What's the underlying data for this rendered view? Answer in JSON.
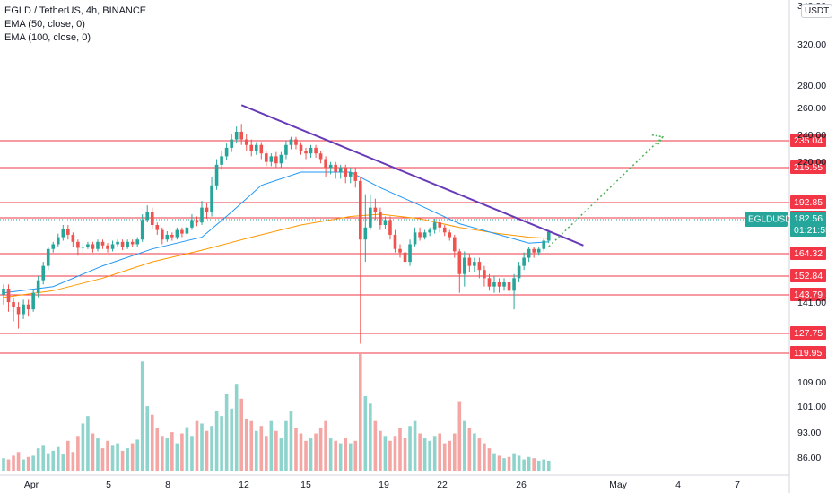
{
  "legend": {
    "title": "EGLD / TetherUS, 4h, BINANCE",
    "ema50": "EMA (50, close, 0)",
    "ema100": "EMA (100, close, 0)"
  },
  "currency": "USDT",
  "colors": {
    "up": "#26a69a",
    "down": "#ef5350",
    "level": "#f23645",
    "ema50": "#2196f3",
    "ema100": "#ff9800",
    "trendline": "#673ab7",
    "projection": "#4caf50",
    "current": "#26a69a"
  },
  "chart_data": {
    "type": "candlestick",
    "symbol": "EGLDUSDT",
    "timeframe": "4h",
    "exchange": "BINANCE",
    "x_ticks": [
      "Apr",
      "5",
      "8",
      "12",
      "15",
      "19",
      "22",
      "26",
      "May",
      "4",
      "7"
    ],
    "price_ticks": [
      "340.00",
      "320.00",
      "280.00",
      "260.00",
      "240.00",
      "220.00",
      "141.00",
      "109.00",
      "101.00",
      "93.00",
      "86.00"
    ],
    "levels": [
      "235.04",
      "215.55",
      "192.85",
      "183.57",
      "164.32",
      "152.84",
      "143.79",
      "127.75",
      "119.95"
    ],
    "current_price": "182.56",
    "countdown": "01:21:55",
    "ticker_label": "EGLDUSDT",
    "ylim": [
      119,
      345
    ],
    "candles": [
      [
        0,
        144.0,
        147.0,
        149.0,
        140.0
      ],
      [
        1,
        147.0,
        141.0,
        149.0,
        137.0
      ],
      [
        2,
        141.0,
        139.0,
        143.0,
        133.0
      ],
      [
        3,
        139.0,
        136.0,
        141.0,
        130.0
      ],
      [
        4,
        136.0,
        140.0,
        142.0,
        134.0
      ],
      [
        5,
        140.0,
        138.0,
        142.0,
        135.0
      ],
      [
        6,
        138.0,
        145.0,
        147.0,
        137.0
      ],
      [
        7,
        145.0,
        151.0,
        153.0,
        143.0
      ],
      [
        8,
        151.0,
        158.0,
        160.0,
        149.0
      ],
      [
        9,
        158.0,
        168.0,
        170.0,
        156.0
      ],
      [
        10,
        168.0,
        172.0,
        174.0,
        165.0
      ],
      [
        11,
        172.0,
        178.0,
        181.0,
        170.0
      ],
      [
        12,
        178.0,
        185.0,
        188.0,
        175.0
      ],
      [
        13,
        185.0,
        180.0,
        188.0,
        176.0
      ],
      [
        14,
        180.0,
        174.0,
        182.0,
        170.0
      ],
      [
        15,
        174.0,
        169.0,
        176.0,
        163.0
      ],
      [
        16,
        169.0,
        170.0,
        173.0,
        165.0
      ],
      [
        17,
        170.0,
        172.0,
        174.0,
        168.0
      ],
      [
        18,
        172.0,
        168.0,
        174.0,
        165.0
      ],
      [
        19,
        168.0,
        174.0,
        176.0,
        166.0
      ],
      [
        20,
        174.0,
        171.0,
        176.0,
        168.0
      ],
      [
        21,
        171.0,
        168.0,
        173.0,
        165.0
      ],
      [
        22,
        168.0,
        172.0,
        175.0,
        166.0
      ],
      [
        23,
        172.0,
        174.0,
        176.0,
        170.0
      ],
      [
        24,
        174.0,
        170.0,
        176.0,
        167.0
      ],
      [
        25,
        170.0,
        174.0,
        176.0,
        168.0
      ],
      [
        26,
        174.0,
        172.0,
        176.0,
        170.0
      ],
      [
        27,
        172.0,
        176.0,
        178.0,
        170.0
      ],
      [
        28,
        176.0,
        192.0,
        195.0,
        174.0
      ],
      [
        29,
        192.0,
        196.0,
        199.0,
        190.0
      ],
      [
        30,
        196.0,
        188.0,
        198.0,
        185.0
      ],
      [
        31,
        188.0,
        184.0,
        190.0,
        180.0
      ],
      [
        32,
        184.0,
        176.0,
        186.0,
        172.0
      ],
      [
        33,
        176.0,
        180.0,
        183.0,
        174.0
      ],
      [
        34,
        180.0,
        178.0,
        182.0,
        175.0
      ],
      [
        35,
        178.0,
        184.0,
        186.0,
        176.0
      ],
      [
        36,
        184.0,
        181.0,
        186.0,
        178.0
      ],
      [
        37,
        181.0,
        186.0,
        189.0,
        179.0
      ],
      [
        38,
        186.0,
        192.0,
        195.0,
        184.0
      ],
      [
        39,
        192.0,
        190.0,
        194.0,
        187.0
      ],
      [
        40,
        190.0,
        198.0,
        201.0,
        188.0
      ],
      [
        41,
        198.0,
        196.0,
        200.0,
        193.0
      ],
      [
        42,
        196.0,
        208.0,
        212.0,
        194.0
      ],
      [
        43,
        208.0,
        218.0,
        222.0,
        206.0
      ],
      [
        44,
        218.0,
        224.0,
        228.0,
        215.0
      ],
      [
        45,
        224.0,
        230.0,
        233.0,
        221.0
      ],
      [
        46,
        230.0,
        236.0,
        240.0,
        227.0
      ],
      [
        47,
        236.0,
        242.0,
        246.0,
        233.0
      ],
      [
        48,
        242.0,
        236.0,
        248.0,
        232.0
      ],
      [
        49,
        236.0,
        232.0,
        240.0,
        228.0
      ],
      [
        50,
        232.0,
        228.0,
        236.0,
        224.0
      ],
      [
        51,
        228.0,
        232.0,
        234.0,
        225.0
      ],
      [
        52,
        232.0,
        226.0,
        234.0,
        222.0
      ],
      [
        53,
        226.0,
        220.0,
        228.0,
        217.0
      ],
      [
        54,
        220.0,
        224.0,
        226.0,
        217.0
      ],
      [
        55,
        224.0,
        219.0,
        227.0,
        216.0
      ],
      [
        56,
        219.0,
        225.0,
        227.0,
        216.0
      ],
      [
        57,
        225.0,
        232.0,
        235.0,
        222.0
      ],
      [
        58,
        232.0,
        236.0,
        238.0,
        229.0
      ],
      [
        59,
        236.0,
        232.0,
        238.0,
        229.0
      ],
      [
        60,
        232.0,
        228.0,
        234.0,
        225.0
      ],
      [
        61,
        228.0,
        226.0,
        230.0,
        222.0
      ],
      [
        62,
        226.0,
        230.0,
        232.0,
        223.0
      ],
      [
        63,
        230.0,
        226.0,
        232.0,
        223.0
      ],
      [
        64,
        226.0,
        222.0,
        228.0,
        219.0
      ],
      [
        65,
        222.0,
        216.0,
        224.0,
        212.0
      ],
      [
        66,
        216.0,
        218.0,
        220.0,
        213.0
      ],
      [
        67,
        218.0,
        214.0,
        220.0,
        211.0
      ],
      [
        68,
        214.0,
        216.0,
        218.0,
        211.0
      ],
      [
        69,
        216.0,
        212.0,
        218.0,
        209.0
      ],
      [
        70,
        212.0,
        214.0,
        216.0,
        209.0
      ],
      [
        71,
        214.0,
        210.0,
        216.0,
        207.0
      ],
      [
        72,
        210.0,
        176.0,
        212.0,
        124.0
      ],
      [
        73,
        176.0,
        186.0,
        204.0,
        160.0
      ],
      [
        74,
        186.0,
        198.0,
        204.0,
        184.0
      ],
      [
        75,
        198.0,
        196.0,
        202.0,
        192.0
      ],
      [
        76,
        196.0,
        188.0,
        198.0,
        184.0
      ],
      [
        77,
        188.0,
        192.0,
        194.0,
        185.0
      ],
      [
        78,
        192.0,
        180.0,
        194.0,
        176.0
      ],
      [
        79,
        180.0,
        168.0,
        184.0,
        165.0
      ],
      [
        80,
        168.0,
        165.0,
        172.0,
        162.0
      ],
      [
        81,
        165.0,
        160.0,
        168.0,
        157.0
      ],
      [
        82,
        160.0,
        172.0,
        176.0,
        158.0
      ],
      [
        83,
        172.0,
        182.0,
        186.0,
        170.0
      ],
      [
        84,
        182.0,
        178.0,
        186.0,
        175.0
      ],
      [
        85,
        178.0,
        182.0,
        184.0,
        176.0
      ],
      [
        86,
        182.0,
        184.0,
        186.0,
        179.0
      ],
      [
        87,
        184.0,
        190.0,
        193.0,
        181.0
      ],
      [
        88,
        190.0,
        186.0,
        192.0,
        182.0
      ],
      [
        89,
        186.0,
        182.0,
        188.0,
        179.0
      ],
      [
        90,
        182.0,
        178.0,
        184.0,
        175.0
      ],
      [
        91,
        178.0,
        166.0,
        180.0,
        162.0
      ],
      [
        92,
        166.0,
        154.0,
        168.0,
        145.0
      ],
      [
        93,
        154.0,
        162.0,
        166.0,
        148.0
      ],
      [
        94,
        162.0,
        158.0,
        164.0,
        155.0
      ],
      [
        95,
        158.0,
        160.0,
        162.0,
        155.0
      ],
      [
        96,
        160.0,
        156.0,
        162.0,
        152.0
      ],
      [
        97,
        156.0,
        152.0,
        158.0,
        148.0
      ],
      [
        98,
        152.0,
        148.0,
        154.0,
        146.0
      ],
      [
        99,
        148.0,
        150.0,
        153.0,
        145.0
      ],
      [
        100,
        150.0,
        148.0,
        152.0,
        145.0
      ],
      [
        101,
        148.0,
        150.0,
        152.0,
        146.0
      ],
      [
        102,
        150.0,
        146.0,
        152.0,
        143.0
      ],
      [
        103,
        146.0,
        152.0,
        154.0,
        138.0
      ],
      [
        104,
        152.0,
        158.0,
        160.0,
        150.0
      ],
      [
        105,
        158.0,
        162.0,
        165.0,
        156.0
      ],
      [
        106,
        162.0,
        168.0,
        170.0,
        160.0
      ],
      [
        107,
        168.0,
        165.0,
        170.0,
        162.0
      ],
      [
        108,
        165.0,
        168.0,
        170.0,
        163.0
      ],
      [
        109,
        168.0,
        175.0,
        177.0,
        166.0
      ],
      [
        110,
        175.0,
        182.5,
        184.0,
        173.0
      ]
    ],
    "ema50": [
      [
        0,
        145.0
      ],
      [
        10,
        148.0
      ],
      [
        20,
        158.0
      ],
      [
        30,
        168.0
      ],
      [
        40,
        178.0
      ],
      [
        46,
        196.0
      ],
      [
        52,
        208.0
      ],
      [
        60,
        214.0
      ],
      [
        70,
        214.0
      ],
      [
        76,
        207.0
      ],
      [
        84,
        199.0
      ],
      [
        92,
        189.0
      ],
      [
        100,
        180.0
      ],
      [
        106,
        173.0
      ],
      [
        110,
        174.0
      ]
    ],
    "ema100": [
      [
        0,
        143.0
      ],
      [
        10,
        146.0
      ],
      [
        20,
        152.0
      ],
      [
        30,
        160.0
      ],
      [
        40,
        167.0
      ],
      [
        50,
        178.0
      ],
      [
        60,
        188.0
      ],
      [
        70,
        194.0
      ],
      [
        76,
        195.0
      ],
      [
        84,
        193.0
      ],
      [
        92,
        186.0
      ],
      [
        100,
        181.0
      ],
      [
        106,
        178.0
      ],
      [
        110,
        177.0
      ]
    ],
    "volume": [
      [
        0,
        10
      ],
      [
        1,
        9
      ],
      [
        2,
        12
      ],
      [
        3,
        15
      ],
      [
        4,
        9
      ],
      [
        5,
        11
      ],
      [
        6,
        12
      ],
      [
        7,
        18
      ],
      [
        8,
        20
      ],
      [
        9,
        14
      ],
      [
        10,
        16
      ],
      [
        11,
        19
      ],
      [
        12,
        13
      ],
      [
        13,
        24
      ],
      [
        14,
        15
      ],
      [
        15,
        28
      ],
      [
        16,
        38
      ],
      [
        17,
        44
      ],
      [
        18,
        30
      ],
      [
        19,
        26
      ],
      [
        20,
        18
      ],
      [
        21,
        24
      ],
      [
        22,
        20
      ],
      [
        23,
        22
      ],
      [
        24,
        16
      ],
      [
        25,
        18
      ],
      [
        26,
        22
      ],
      [
        27,
        25
      ],
      [
        28,
        88
      ],
      [
        29,
        52
      ],
      [
        30,
        45
      ],
      [
        31,
        34
      ],
      [
        32,
        28
      ],
      [
        33,
        26
      ],
      [
        34,
        31
      ],
      [
        35,
        22
      ],
      [
        36,
        30
      ],
      [
        37,
        35
      ],
      [
        38,
        28
      ],
      [
        39,
        40
      ],
      [
        40,
        38
      ],
      [
        41,
        32
      ],
      [
        42,
        36
      ],
      [
        43,
        48
      ],
      [
        44,
        44
      ],
      [
        45,
        62
      ],
      [
        46,
        50
      ],
      [
        47,
        70
      ],
      [
        48,
        58
      ],
      [
        49,
        42
      ],
      [
        50,
        40
      ],
      [
        51,
        32
      ],
      [
        52,
        36
      ],
      [
        53,
        28
      ],
      [
        54,
        40
      ],
      [
        55,
        32
      ],
      [
        56,
        26
      ],
      [
        57,
        40
      ],
      [
        58,
        48
      ],
      [
        59,
        34
      ],
      [
        60,
        30
      ],
      [
        61,
        24
      ],
      [
        62,
        26
      ],
      [
        63,
        30
      ],
      [
        64,
        34
      ],
      [
        65,
        40
      ],
      [
        66,
        26
      ],
      [
        67,
        24
      ],
      [
        68,
        22
      ],
      [
        69,
        26
      ],
      [
        70,
        22
      ],
      [
        71,
        24
      ],
      [
        72,
        94
      ],
      [
        73,
        60
      ],
      [
        74,
        54
      ],
      [
        75,
        40
      ],
      [
        76,
        32
      ],
      [
        77,
        28
      ],
      [
        78,
        24
      ],
      [
        79,
        28
      ],
      [
        80,
        34
      ],
      [
        81,
        26
      ],
      [
        82,
        36
      ],
      [
        83,
        40
      ],
      [
        84,
        30
      ],
      [
        85,
        26
      ],
      [
        86,
        24
      ],
      [
        87,
        28
      ],
      [
        88,
        30
      ],
      [
        89,
        22
      ],
      [
        90,
        24
      ],
      [
        91,
        30
      ],
      [
        92,
        56
      ],
      [
        93,
        40
      ],
      [
        94,
        34
      ],
      [
        95,
        30
      ],
      [
        96,
        26
      ],
      [
        97,
        22
      ],
      [
        98,
        18
      ],
      [
        99,
        14
      ],
      [
        100,
        12
      ],
      [
        101,
        10
      ],
      [
        102,
        11
      ],
      [
        103,
        14
      ],
      [
        104,
        12
      ],
      [
        105,
        9
      ],
      [
        106,
        11
      ],
      [
        107,
        10
      ],
      [
        108,
        8
      ],
      [
        109,
        9
      ],
      [
        110,
        8
      ]
    ],
    "trendline": [
      [
        48,
        263.0
      ],
      [
        117,
        171.0
      ]
    ],
    "projection": [
      [
        110,
        170.0
      ],
      [
        133,
        238.0
      ]
    ]
  }
}
